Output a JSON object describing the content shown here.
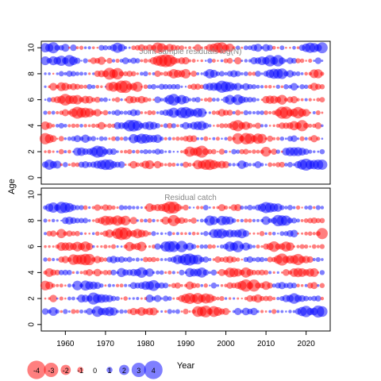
{
  "chart_data": [
    {
      "type": "scatter",
      "title": "Joint sample residuals log(N)",
      "xlabel": "Year",
      "ylabel": "Age",
      "xlim": [
        1954,
        2026
      ],
      "ylim": [
        -0.5,
        10.5
      ],
      "x_ticks": [
        1960,
        1970,
        1980,
        1990,
        2000,
        2010,
        2020
      ],
      "y_ticks": [
        0,
        2,
        4,
        6,
        8,
        10
      ],
      "years": [
        1955,
        2024
      ],
      "ages": [
        1,
        10
      ],
      "encoding": "bubble size = |residual|, red = negative, blue = positive",
      "colors": {
        "negative": "#ff0000",
        "positive": "#0000ff"
      }
    },
    {
      "type": "scatter",
      "title": "Residual catch",
      "xlabel": "Year",
      "ylabel": "Age",
      "xlim": [
        1954,
        2026
      ],
      "ylim": [
        -0.5,
        10.5
      ],
      "x_ticks": [
        1960,
        1970,
        1980,
        1990,
        2000,
        2010,
        2020
      ],
      "y_ticks": [
        0,
        2,
        4,
        6,
        8,
        10
      ],
      "years": [
        1955,
        2024
      ],
      "ages": [
        1,
        9
      ],
      "encoding": "bubble size = |residual|, red = negative, blue = positive",
      "colors": {
        "negative": "#ff0000",
        "positive": "#0000ff"
      }
    }
  ],
  "shared_ylabel": "Age",
  "shared_xlabel": "Year",
  "legend": {
    "values": [
      -4,
      -3,
      -2,
      -1,
      0,
      1,
      2,
      3,
      4
    ],
    "labels": [
      "-4",
      "-3",
      "-2",
      "-1",
      "0",
      "1",
      "2",
      "3",
      "4"
    ]
  }
}
